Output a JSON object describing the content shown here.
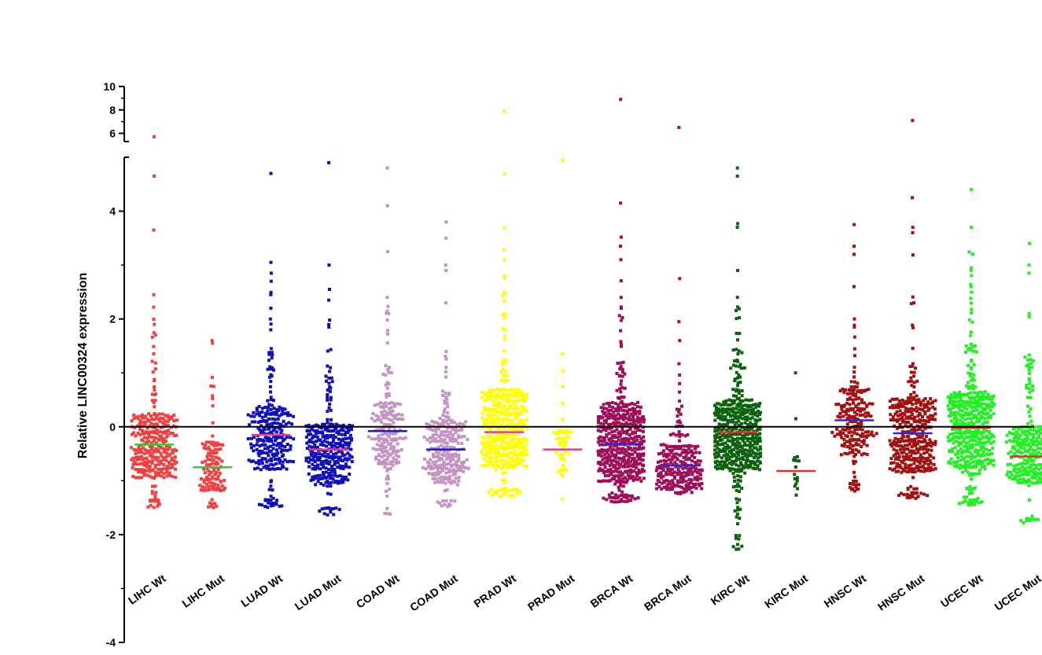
{
  "chart_data": {
    "type": "scatter",
    "subtype": "column-scatter-with-median",
    "ylabel": "Relative LINC00324 expression",
    "ylim": [
      -4,
      10
    ],
    "axis_break": [
      5,
      5.3
    ],
    "y_ticks_lower": [
      -4,
      -2,
      0,
      2,
      4
    ],
    "y_ticks_upper": [
      6,
      8,
      10
    ],
    "grid": false,
    "legend": "none",
    "zero_line": true,
    "categories": [
      "LIHC Wt",
      "LIHC Mut",
      "LUAD Wt",
      "LUAD Mut",
      "COAD Wt",
      "COAD Mut",
      "PRAD Wt",
      "PRAD Mut",
      "BRCA Wt",
      "BRCA Mut",
      "KIRC Wt",
      "KIRC Mut",
      "HNSC Wt",
      "HNSC Mut",
      "UCEC Wt",
      "UCEC Mut"
    ],
    "series": [
      {
        "color": "#f24040",
        "median": -0.33,
        "median_color": "#33cc33",
        "n": 300,
        "min": -1.5,
        "q1": -0.95,
        "q3": 0.25,
        "outliers": [
          5.7,
          4.65,
          3.65,
          2.45,
          1.9,
          1.7
        ]
      },
      {
        "color": "#f24040",
        "median": -0.75,
        "median_color": "#33cc33",
        "n": 110,
        "min": -1.5,
        "q1": -1.2,
        "q3": -0.25,
        "outliers": [
          1.6,
          1.55,
          0.75
        ]
      },
      {
        "color": "#1010bb",
        "median": -0.15,
        "median_color": "#e0409a",
        "n": 260,
        "min": -1.5,
        "q1": -0.8,
        "q3": 0.4,
        "outliers": [
          4.7,
          3.05,
          2.85,
          2.7,
          2.2,
          2.0
        ]
      },
      {
        "color": "#1010bb",
        "median": -0.42,
        "median_color": "#e0409a",
        "n": 320,
        "min": -1.65,
        "q1": -1.05,
        "q3": 0.05,
        "outliers": [
          4.9,
          3.0,
          2.55,
          2.35,
          1.85
        ]
      },
      {
        "color": "#c493c4",
        "median": -0.08,
        "median_color": "#1a1ac8",
        "n": 180,
        "min": -1.65,
        "q1": -0.75,
        "q3": 0.45,
        "outliers": [
          4.8,
          4.1,
          3.25,
          2.4,
          2.1
        ]
      },
      {
        "color": "#c493c4",
        "median": -0.42,
        "median_color": "#1a1ac8",
        "n": 250,
        "min": -1.5,
        "q1": -1.05,
        "q3": 0.15,
        "outliers": [
          3.8,
          3.5,
          3.0,
          2.9,
          2.3
        ]
      },
      {
        "color": "#ffff00",
        "median": -0.1,
        "median_color": "#e0409a",
        "n": 420,
        "min": -1.3,
        "q1": -0.75,
        "q3": 0.7,
        "outliers": [
          7.9,
          4.7,
          3.1,
          2.8,
          2.5
        ]
      },
      {
        "color": "#ffff00",
        "median": -0.42,
        "median_color": "#e0409a",
        "n": 45,
        "min": -1.35,
        "q1": -0.85,
        "q3": -0.05,
        "outliers": [
          4.95,
          1.35,
          0.75
        ]
      },
      {
        "color": "#9e0e58",
        "median": -0.32,
        "median_color": "#2a2ad6",
        "n": 480,
        "min": -1.4,
        "q1": -1.05,
        "q3": 0.45,
        "outliers": [
          8.9,
          4.15,
          3.35,
          3.1,
          2.4
        ]
      },
      {
        "color": "#9e0e58",
        "median": -0.72,
        "median_color": "#2a2ad6",
        "n": 230,
        "min": -1.25,
        "q1": -1.15,
        "q3": -0.35,
        "outliers": [
          6.5,
          2.75,
          1.95,
          1.6,
          0.8
        ]
      },
      {
        "color": "#0d620d",
        "median": -0.1,
        "median_color": "#e03030",
        "n": 470,
        "min": -2.3,
        "q1": -0.8,
        "q3": 0.5,
        "outliers": [
          4.8,
          4.65,
          3.7,
          2.9,
          2.4
        ]
      },
      {
        "color": "#0d620d",
        "median": -0.82,
        "median_color": "#e03030",
        "n": 14,
        "min": -2.2,
        "q1": -1.15,
        "q3": -0.5,
        "outliers": [
          1.0,
          0.15
        ]
      },
      {
        "color": "#a31010",
        "median": 0.12,
        "median_color": "#2a2ad6",
        "n": 200,
        "min": -1.2,
        "q1": -0.55,
        "q3": 0.75,
        "outliers": [
          3.75,
          3.35,
          3.2,
          2.6,
          2.0
        ]
      },
      {
        "color": "#a31010",
        "median": -0.12,
        "median_color": "#2a2ad6",
        "n": 360,
        "min": -1.35,
        "q1": -0.85,
        "q3": 0.55,
        "outliers": [
          7.1,
          4.25,
          3.7,
          3.6,
          2.3
        ]
      },
      {
        "color": "#22f022",
        "median": -0.02,
        "median_color": "#e03030",
        "n": 430,
        "min": -1.45,
        "q1": -0.75,
        "q3": 0.65,
        "outliers": [
          4.4,
          3.7,
          3.2,
          2.9,
          2.6
        ]
      },
      {
        "color": "#22f022",
        "median": -0.55,
        "median_color": "#e03030",
        "n": 260,
        "min": -1.8,
        "q1": -1.05,
        "q3": 0.0,
        "outliers": [
          3.4,
          3.0,
          2.85,
          2.1,
          1.1
        ]
      }
    ]
  }
}
